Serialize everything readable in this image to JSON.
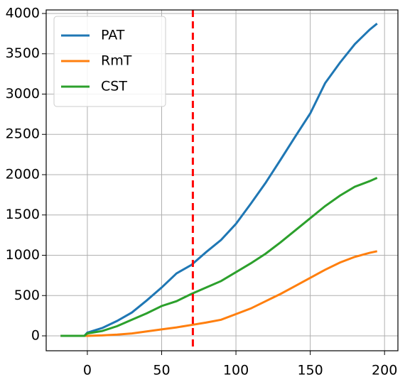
{
  "chart_data": {
    "type": "line",
    "x": [
      -18,
      -2,
      0,
      10,
      20,
      30,
      40,
      50,
      60,
      70,
      80,
      90,
      100,
      110,
      120,
      130,
      140,
      150,
      160,
      170,
      180,
      190,
      195
    ],
    "series": [
      {
        "name": "PAT",
        "color": "#1f77b4",
        "values": [
          0,
          0,
          40,
          97,
          185,
          290,
          440,
          600,
          775,
          880,
          1040,
          1190,
          1390,
          1640,
          1900,
          2185,
          2475,
          2760,
          3135,
          3390,
          3620,
          3800,
          3875
        ]
      },
      {
        "name": "RmT",
        "color": "#ff7f0e",
        "values": [
          0,
          0,
          0,
          5,
          15,
          30,
          55,
          80,
          105,
          135,
          165,
          200,
          270,
          340,
          430,
          520,
          620,
          720,
          820,
          910,
          980,
          1030,
          1050
        ]
      },
      {
        "name": "CST",
        "color": "#2ca02c",
        "values": [
          0,
          0,
          30,
          60,
          120,
          200,
          280,
          370,
          430,
          520,
          600,
          680,
          790,
          900,
          1020,
          1160,
          1310,
          1460,
          1610,
          1740,
          1850,
          1920,
          1960
        ]
      }
    ],
    "vline": {
      "x": 71,
      "color": "#ff0000"
    },
    "xlim": [
      -27.7,
      209
    ],
    "xticks": [
      0,
      50,
      100,
      150,
      200
    ],
    "ylim": [
      -185,
      4044
    ],
    "yticks": [
      0,
      500,
      1000,
      1500,
      2000,
      2500,
      3000,
      3500,
      4000
    ],
    "grid": true,
    "legend": "upper left"
  }
}
